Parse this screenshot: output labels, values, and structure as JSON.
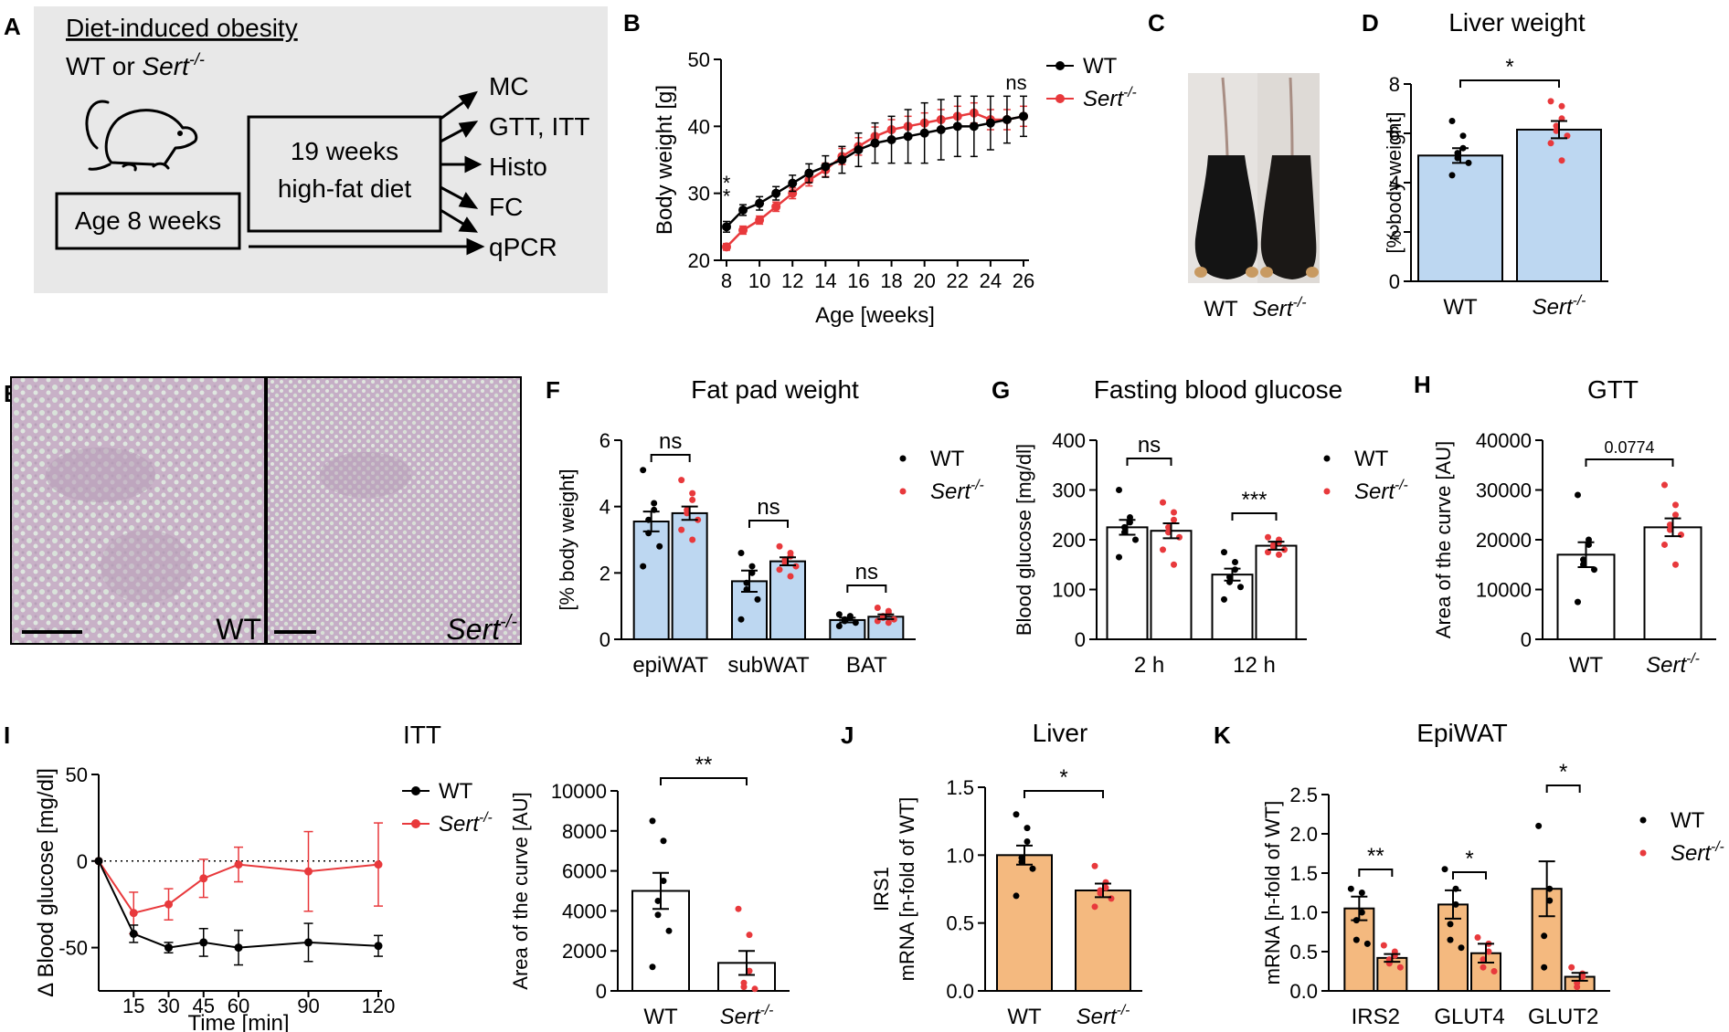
{
  "panels": {
    "A": {
      "letter": "A",
      "title": "Diet-induced obesity",
      "genotype_text": "WT or ",
      "sert": "Sert",
      "sert_sup": "-/-",
      "age_label": "Age 8 weeks",
      "diet_line1": "19 weeks",
      "diet_line2": "high-fat diet",
      "outputs": [
        "MC",
        "GTT, ITT",
        "Histo",
        "FC",
        "qPCR"
      ]
    },
    "C": {
      "letter": "C",
      "labels": [
        "WT",
        "Sert"
      ],
      "sup": "-/-"
    },
    "E": {
      "letter": "E",
      "label_wt": "WT",
      "label_ko": "Sert",
      "sup": "-/-"
    }
  },
  "legend": {
    "wt": "WT",
    "ko": "Sert",
    "ko_sup": "-/-"
  },
  "colors": {
    "wt": "#000000",
    "ko": "#e8393c",
    "bar_blue": "#bdd7f1",
    "bar_orange": "#f4b97f",
    "panel_bg": "#e8e8e8"
  },
  "chart_data": [
    {
      "id": "B",
      "type": "line",
      "letter": "B",
      "xlabel": "Age [weeks]",
      "ylabel": "Body weight [g]",
      "xlim": [
        8,
        26
      ],
      "ylim": [
        20,
        50
      ],
      "xticks": [
        8,
        10,
        12,
        14,
        16,
        18,
        20,
        22,
        24,
        26
      ],
      "yticks": [
        20,
        30,
        40,
        50
      ],
      "annotations": [
        {
          "text": "*",
          "x": 8
        },
        {
          "text": "*",
          "x": 8
        },
        {
          "text": "ns",
          "x": 26
        }
      ],
      "x": [
        8,
        9,
        10,
        11,
        12,
        13,
        14,
        15,
        16,
        17,
        18,
        19,
        20,
        21,
        22,
        23,
        24,
        25,
        26
      ],
      "series": [
        {
          "name": "WT",
          "values": [
            25,
            27.5,
            28.5,
            30,
            31.5,
            33,
            34,
            35,
            36.5,
            37.5,
            38,
            38.5,
            39,
            39.5,
            40,
            40,
            40.5,
            41,
            41.5
          ],
          "errors": [
            0.8,
            0.8,
            1,
            1,
            1.2,
            1.4,
            1.6,
            2,
            2.5,
            3,
            3.5,
            4,
            4.5,
            4.5,
            4.5,
            4.5,
            4,
            3.5,
            3
          ]
        },
        {
          "name": "Sert-/-",
          "values": [
            22,
            24.5,
            26,
            28,
            30,
            32,
            33.5,
            35.5,
            37,
            38.5,
            39.5,
            40,
            40.5,
            41,
            41.5,
            42,
            41,
            41,
            41.5
          ],
          "errors": [
            0.5,
            0.6,
            0.6,
            0.7,
            0.8,
            0.9,
            1,
            1.2,
            1.3,
            1.4,
            1.5,
            1.5,
            1.5,
            1.5,
            1.5,
            1.5,
            1.5,
            1.5,
            1.5
          ]
        }
      ]
    },
    {
      "id": "D",
      "type": "bar",
      "letter": "D",
      "title": "Liver weight",
      "ylabel": "[% body weight]",
      "ylim": [
        0,
        8
      ],
      "yticks": [
        0,
        2,
        4,
        6,
        8
      ],
      "categories": [
        "WT",
        "Sert-/-"
      ],
      "values": [
        5.1,
        6.15
      ],
      "errors": [
        0.3,
        0.35
      ],
      "points": [
        [
          6.5,
          5.9,
          5.4,
          5.2,
          5.0,
          4.8,
          4.3
        ],
        [
          7.3,
          7.1,
          6.6,
          6.3,
          6.1,
          5.9,
          5.6,
          4.9
        ]
      ],
      "sig": [
        {
          "text": "*"
        }
      ]
    },
    {
      "id": "F",
      "type": "bar",
      "letter": "F",
      "title": "Fat pad weight",
      "ylabel": "[% body weight]",
      "ylim": [
        0,
        6
      ],
      "yticks": [
        0,
        2,
        4,
        6
      ],
      "categories": [
        "epiWAT",
        "subWAT",
        "BAT"
      ],
      "series": [
        {
          "name": "WT",
          "values": [
            3.55,
            1.75,
            0.58
          ],
          "errors": [
            0.3,
            0.32,
            0.07
          ],
          "points": [
            [
              5.1,
              4.1,
              3.9,
              3.6,
              3.2,
              2.8,
              2.2
            ],
            [
              2.6,
              2.2,
              2.0,
              1.7,
              1.5,
              1.2,
              0.6
            ],
            [
              0.75,
              0.7,
              0.65,
              0.6,
              0.55,
              0.5,
              0.4
            ]
          ]
        },
        {
          "name": "Sert-/-",
          "values": [
            3.8,
            2.35,
            0.68
          ],
          "errors": [
            0.2,
            0.12,
            0.07
          ],
          "points": [
            [
              4.8,
              4.4,
              4.2,
              3.9,
              3.8,
              3.6,
              3.3,
              3.0
            ],
            [
              2.8,
              2.6,
              2.5,
              2.4,
              2.3,
              2.2,
              2.1,
              1.9
            ],
            [
              0.95,
              0.85,
              0.8,
              0.7,
              0.65,
              0.6,
              0.55,
              0.5
            ]
          ]
        }
      ],
      "sig": [
        {
          "text": "ns"
        },
        {
          "text": "ns"
        },
        {
          "text": "ns"
        }
      ]
    },
    {
      "id": "G",
      "type": "bar",
      "letter": "G",
      "title": "Fasting blood glucose",
      "ylabel": "Blood glucose [mg/dl]",
      "ylim": [
        0,
        400
      ],
      "yticks": [
        0,
        100,
        200,
        300,
        400
      ],
      "categories": [
        "2 h",
        "12 h"
      ],
      "series": [
        {
          "name": "WT",
          "values": [
            225,
            130
          ],
          "errors": [
            15,
            12
          ],
          "points": [
            [
              300,
              245,
              235,
              225,
              215,
              200,
              165
            ],
            [
              175,
              155,
              140,
              125,
              115,
              105,
              80
            ]
          ]
        },
        {
          "name": "Sert-/-",
          "values": [
            218,
            188
          ],
          "errors": [
            15,
            8
          ],
          "points": [
            [
              275,
              255,
              240,
              225,
              215,
              205,
              180,
              150
            ],
            [
              205,
              200,
              195,
              190,
              185,
              180,
              175,
              170
            ]
          ]
        }
      ],
      "sig": [
        {
          "text": "ns"
        },
        {
          "text": "***"
        }
      ]
    },
    {
      "id": "H",
      "type": "bar",
      "letter": "H",
      "title": "GTT",
      "ylabel": "Area of the curve [AU]",
      "ylim": [
        0,
        40000
      ],
      "yticks": [
        0,
        10000,
        20000,
        30000,
        40000
      ],
      "categories": [
        "WT",
        "Sert-/-"
      ],
      "values": [
        17000,
        22500
      ],
      "errors": [
        2500,
        1800
      ],
      "points": [
        [
          29000,
          20000,
          19000,
          16000,
          15000,
          14000,
          7500
        ],
        [
          31000,
          27000,
          25000,
          23000,
          22000,
          21000,
          19000,
          15000
        ]
      ],
      "sig": [
        {
          "text": "0.0774"
        }
      ]
    },
    {
      "id": "I1",
      "type": "line",
      "letter": "I",
      "title": "ITT",
      "xlabel": "Time [min]",
      "ylabel": "Δ Blood glucose [mg/dl]",
      "xlim": [
        0,
        120
      ],
      "ylim": [
        -75,
        50
      ],
      "xticks": [
        15,
        30,
        45,
        60,
        90,
        120
      ],
      "yticks": [
        -50,
        0,
        50
      ],
      "x": [
        0,
        15,
        30,
        45,
        60,
        90,
        120
      ],
      "series": [
        {
          "name": "WT",
          "values": [
            0,
            -42,
            -50,
            -47,
            -50,
            -47,
            -49
          ],
          "errors": [
            0,
            5,
            3,
            8,
            10,
            11,
            6
          ]
        },
        {
          "name": "Sert-/-",
          "values": [
            0,
            -30,
            -25,
            -10,
            -2,
            -6,
            -2
          ],
          "errors": [
            0,
            12,
            9,
            11,
            10,
            23,
            24
          ]
        }
      ]
    },
    {
      "id": "I2",
      "type": "bar",
      "ylabel": "Area of the curve [AU]",
      "ylim": [
        0,
        10000
      ],
      "yticks": [
        0,
        2000,
        4000,
        6000,
        8000,
        10000
      ],
      "categories": [
        "WT",
        "Sert-/-"
      ],
      "values": [
        5000,
        1400
      ],
      "errors": [
        900,
        600
      ],
      "points": [
        [
          8500,
          7500,
          5500,
          4500,
          3800,
          3000,
          1200
        ],
        [
          4100,
          2800,
          1000,
          400,
          200,
          100
        ]
      ],
      "sig": [
        {
          "text": "**"
        }
      ]
    },
    {
      "id": "J",
      "type": "bar",
      "letter": "J",
      "title": "Liver",
      "ylabel": "mRNA [n-fold of WT]",
      "ylabel2": "IRS1",
      "ylim": [
        0,
        1.5
      ],
      "yticks": [
        0.0,
        0.5,
        1.0,
        1.5
      ],
      "categories": [
        "WT",
        "Sert-/-"
      ],
      "values": [
        1.0,
        0.74
      ],
      "errors": [
        0.07,
        0.05
      ],
      "points": [
        [
          1.3,
          1.2,
          1.1,
          0.98,
          0.95,
          0.9,
          0.7
        ],
        [
          0.92,
          0.8,
          0.76,
          0.74,
          0.72,
          0.68,
          0.62
        ]
      ],
      "sig": [
        {
          "text": "*"
        }
      ]
    },
    {
      "id": "K",
      "type": "bar",
      "letter": "K",
      "title": "EpiWAT",
      "ylabel": "mRNA [n-fold of WT]",
      "ylim": [
        0,
        2.5
      ],
      "yticks": [
        0.0,
        0.5,
        1.0,
        1.5,
        2.0,
        2.5
      ],
      "categories": [
        "IRS2",
        "GLUT4",
        "GLUT2"
      ],
      "series": [
        {
          "name": "WT",
          "values": [
            1.05,
            1.1,
            1.3
          ],
          "errors": [
            0.15,
            0.18,
            0.35
          ],
          "points": [
            [
              1.3,
              1.25,
              1.0,
              0.9,
              0.65,
              0.6
            ],
            [
              1.55,
              1.3,
              1.1,
              0.85,
              0.65,
              0.55
            ],
            [
              2.1,
              1.3,
              1.15,
              0.7,
              0.3
            ]
          ]
        },
        {
          "name": "Sert-/-",
          "values": [
            0.42,
            0.48,
            0.18
          ],
          "errors": [
            0.05,
            0.12,
            0.05
          ],
          "points": [
            [
              0.58,
              0.5,
              0.45,
              0.4,
              0.35,
              0.3
            ],
            [
              0.68,
              0.6,
              0.5,
              0.4,
              0.3,
              0.25
            ],
            [
              0.3,
              0.22,
              0.18,
              0.1,
              0.05
            ]
          ]
        }
      ],
      "sig": [
        {
          "text": "**"
        },
        {
          "text": "*"
        },
        {
          "text": "*"
        }
      ]
    }
  ]
}
